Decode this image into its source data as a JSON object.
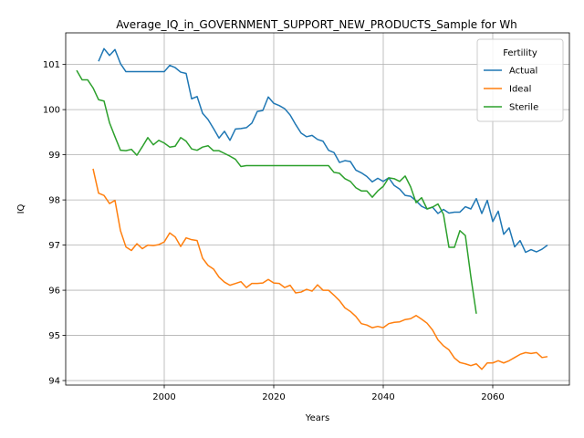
{
  "chart_data": {
    "type": "line",
    "title": "Average_IQ_in_GOVERNMENT_SUPPORT_NEW_PRODUCTS_Sample for Wh",
    "xlabel": "Years",
    "ylabel": "IQ",
    "xlim": [
      1982,
      2074
    ],
    "ylim": [
      93.9,
      101.7
    ],
    "xticks": [
      2000,
      2020,
      2040,
      2060
    ],
    "yticks": [
      94,
      95,
      96,
      97,
      98,
      99,
      100,
      101
    ],
    "grid": true,
    "legend": {
      "title": "Fertility",
      "position": "top-right"
    },
    "series": [
      {
        "name": "Actual",
        "color": "#1f77b4",
        "points": [
          [
            1988,
            101.07
          ],
          [
            1989,
            101.35
          ],
          [
            1990,
            101.2
          ],
          [
            1991,
            101.33
          ],
          [
            1992,
            101.02
          ],
          [
            1993,
            100.84
          ],
          [
            1994,
            100.84
          ],
          [
            1995,
            100.84
          ],
          [
            1996,
            100.84
          ],
          [
            1997,
            100.84
          ],
          [
            1998,
            100.84
          ],
          [
            1999,
            100.84
          ],
          [
            2000,
            100.84
          ],
          [
            2001,
            100.98
          ],
          [
            2002,
            100.93
          ],
          [
            2003,
            100.83
          ],
          [
            2004,
            100.8
          ],
          [
            2005,
            100.24
          ],
          [
            2006,
            100.29
          ],
          [
            2007,
            99.92
          ],
          [
            2008,
            99.78
          ],
          [
            2009,
            99.58
          ],
          [
            2010,
            99.37
          ],
          [
            2011,
            99.52
          ],
          [
            2012,
            99.32
          ],
          [
            2013,
            99.57
          ],
          [
            2014,
            99.58
          ],
          [
            2015,
            99.6
          ],
          [
            2016,
            99.7
          ],
          [
            2017,
            99.96
          ],
          [
            2018,
            99.98
          ],
          [
            2019,
            100.28
          ],
          [
            2020,
            100.14
          ],
          [
            2021,
            100.09
          ],
          [
            2022,
            100.02
          ],
          [
            2023,
            99.88
          ],
          [
            2024,
            99.67
          ],
          [
            2025,
            99.48
          ],
          [
            2026,
            99.4
          ],
          [
            2027,
            99.43
          ],
          [
            2028,
            99.34
          ],
          [
            2029,
            99.3
          ],
          [
            2030,
            99.1
          ],
          [
            2031,
            99.05
          ],
          [
            2032,
            98.83
          ],
          [
            2033,
            98.87
          ],
          [
            2034,
            98.85
          ],
          [
            2035,
            98.66
          ],
          [
            2036,
            98.6
          ],
          [
            2037,
            98.52
          ],
          [
            2038,
            98.4
          ],
          [
            2039,
            98.48
          ],
          [
            2040,
            98.41
          ],
          [
            2041,
            98.49
          ],
          [
            2042,
            98.32
          ],
          [
            2043,
            98.24
          ],
          [
            2044,
            98.1
          ],
          [
            2045,
            98.08
          ],
          [
            2046,
            97.98
          ],
          [
            2047,
            97.86
          ],
          [
            2048,
            97.8
          ],
          [
            2049,
            97.84
          ],
          [
            2050,
            97.7
          ],
          [
            2051,
            97.79
          ],
          [
            2052,
            97.71
          ],
          [
            2053,
            97.73
          ],
          [
            2054,
            97.73
          ],
          [
            2055,
            97.85
          ],
          [
            2056,
            97.8
          ],
          [
            2057,
            98.03
          ],
          [
            2058,
            97.7
          ],
          [
            2059,
            97.99
          ],
          [
            2060,
            97.52
          ],
          [
            2061,
            97.75
          ],
          [
            2062,
            97.24
          ],
          [
            2063,
            97.38
          ],
          [
            2064,
            96.96
          ],
          [
            2065,
            97.1
          ],
          [
            2066,
            96.84
          ],
          [
            2067,
            96.9
          ],
          [
            2068,
            96.85
          ],
          [
            2069,
            96.91
          ],
          [
            2070,
            97.0
          ]
        ]
      },
      {
        "name": "Ideal",
        "color": "#ff7f0e",
        "points": [
          [
            1987,
            98.69
          ],
          [
            1988,
            98.15
          ],
          [
            1989,
            98.1
          ],
          [
            1990,
            97.92
          ],
          [
            1991,
            97.99
          ],
          [
            1992,
            97.32
          ],
          [
            1993,
            96.96
          ],
          [
            1994,
            96.88
          ],
          [
            1995,
            97.03
          ],
          [
            1996,
            96.92
          ],
          [
            1997,
            97.0
          ],
          [
            1998,
            96.99
          ],
          [
            1999,
            97.01
          ],
          [
            2000,
            97.07
          ],
          [
            2001,
            97.27
          ],
          [
            2002,
            97.18
          ],
          [
            2003,
            96.97
          ],
          [
            2004,
            97.16
          ],
          [
            2005,
            97.12
          ],
          [
            2006,
            97.1
          ],
          [
            2007,
            96.71
          ],
          [
            2008,
            96.55
          ],
          [
            2009,
            96.47
          ],
          [
            2010,
            96.29
          ],
          [
            2011,
            96.18
          ],
          [
            2012,
            96.11
          ],
          [
            2013,
            96.15
          ],
          [
            2014,
            96.19
          ],
          [
            2015,
            96.06
          ],
          [
            2016,
            96.15
          ],
          [
            2017,
            96.15
          ],
          [
            2018,
            96.16
          ],
          [
            2019,
            96.24
          ],
          [
            2020,
            96.16
          ],
          [
            2021,
            96.15
          ],
          [
            2022,
            96.06
          ],
          [
            2023,
            96.11
          ],
          [
            2024,
            95.94
          ],
          [
            2025,
            95.96
          ],
          [
            2026,
            96.02
          ],
          [
            2027,
            95.98
          ],
          [
            2028,
            96.12
          ],
          [
            2029,
            96.0
          ],
          [
            2030,
            96.0
          ],
          [
            2031,
            95.89
          ],
          [
            2032,
            95.77
          ],
          [
            2033,
            95.61
          ],
          [
            2034,
            95.53
          ],
          [
            2035,
            95.42
          ],
          [
            2036,
            95.26
          ],
          [
            2037,
            95.23
          ],
          [
            2038,
            95.17
          ],
          [
            2039,
            95.2
          ],
          [
            2040,
            95.17
          ],
          [
            2041,
            95.26
          ],
          [
            2042,
            95.29
          ],
          [
            2043,
            95.3
          ],
          [
            2044,
            95.35
          ],
          [
            2045,
            95.37
          ],
          [
            2046,
            95.44
          ],
          [
            2047,
            95.36
          ],
          [
            2048,
            95.27
          ],
          [
            2049,
            95.12
          ],
          [
            2050,
            94.9
          ],
          [
            2051,
            94.77
          ],
          [
            2052,
            94.68
          ],
          [
            2053,
            94.5
          ],
          [
            2054,
            94.4
          ],
          [
            2055,
            94.37
          ],
          [
            2056,
            94.33
          ],
          [
            2057,
            94.37
          ],
          [
            2058,
            94.25
          ],
          [
            2059,
            94.39
          ],
          [
            2060,
            94.39
          ],
          [
            2061,
            94.44
          ],
          [
            2062,
            94.39
          ],
          [
            2063,
            94.44
          ],
          [
            2064,
            94.51
          ],
          [
            2065,
            94.58
          ],
          [
            2066,
            94.62
          ],
          [
            2067,
            94.6
          ],
          [
            2068,
            94.62
          ],
          [
            2069,
            94.51
          ],
          [
            2070,
            94.53
          ]
        ]
      },
      {
        "name": "Sterile",
        "color": "#2ca02c",
        "points": [
          [
            1984,
            100.87
          ],
          [
            1985,
            100.66
          ],
          [
            1986,
            100.66
          ],
          [
            1987,
            100.48
          ],
          [
            1988,
            100.22
          ],
          [
            1989,
            100.19
          ],
          [
            1990,
            99.71
          ],
          [
            1991,
            99.4
          ],
          [
            1992,
            99.1
          ],
          [
            1993,
            99.09
          ],
          [
            1994,
            99.12
          ],
          [
            1995,
            98.99
          ],
          [
            1996,
            99.18
          ],
          [
            1997,
            99.38
          ],
          [
            1998,
            99.22
          ],
          [
            1999,
            99.32
          ],
          [
            2000,
            99.26
          ],
          [
            2001,
            99.17
          ],
          [
            2002,
            99.19
          ],
          [
            2003,
            99.38
          ],
          [
            2004,
            99.3
          ],
          [
            2005,
            99.13
          ],
          [
            2006,
            99.1
          ],
          [
            2007,
            99.17
          ],
          [
            2008,
            99.2
          ],
          [
            2009,
            99.09
          ],
          [
            2010,
            99.09
          ],
          [
            2011,
            99.03
          ],
          [
            2012,
            98.97
          ],
          [
            2013,
            98.9
          ],
          [
            2014,
            98.74
          ],
          [
            2015,
            98.76
          ],
          [
            2016,
            98.76
          ],
          [
            2017,
            98.76
          ],
          [
            2018,
            98.76
          ],
          [
            2019,
            98.76
          ],
          [
            2020,
            98.76
          ],
          [
            2021,
            98.76
          ],
          [
            2022,
            98.76
          ],
          [
            2023,
            98.76
          ],
          [
            2024,
            98.76
          ],
          [
            2025,
            98.76
          ],
          [
            2026,
            98.76
          ],
          [
            2027,
            98.76
          ],
          [
            2028,
            98.76
          ],
          [
            2029,
            98.76
          ],
          [
            2030,
            98.76
          ],
          [
            2031,
            98.61
          ],
          [
            2032,
            98.59
          ],
          [
            2033,
            98.47
          ],
          [
            2034,
            98.41
          ],
          [
            2035,
            98.27
          ],
          [
            2036,
            98.2
          ],
          [
            2037,
            98.2
          ],
          [
            2038,
            98.06
          ],
          [
            2039,
            98.2
          ],
          [
            2040,
            98.3
          ],
          [
            2041,
            98.49
          ],
          [
            2042,
            98.47
          ],
          [
            2043,
            98.41
          ],
          [
            2044,
            98.53
          ],
          [
            2045,
            98.29
          ],
          [
            2046,
            97.94
          ],
          [
            2047,
            98.05
          ],
          [
            2048,
            97.8
          ],
          [
            2049,
            97.84
          ],
          [
            2050,
            97.91
          ],
          [
            2051,
            97.68
          ],
          [
            2052,
            96.95
          ],
          [
            2053,
            96.95
          ],
          [
            2054,
            97.32
          ],
          [
            2055,
            97.21
          ],
          [
            2056,
            96.3
          ],
          [
            2057,
            95.48
          ]
        ]
      }
    ]
  }
}
